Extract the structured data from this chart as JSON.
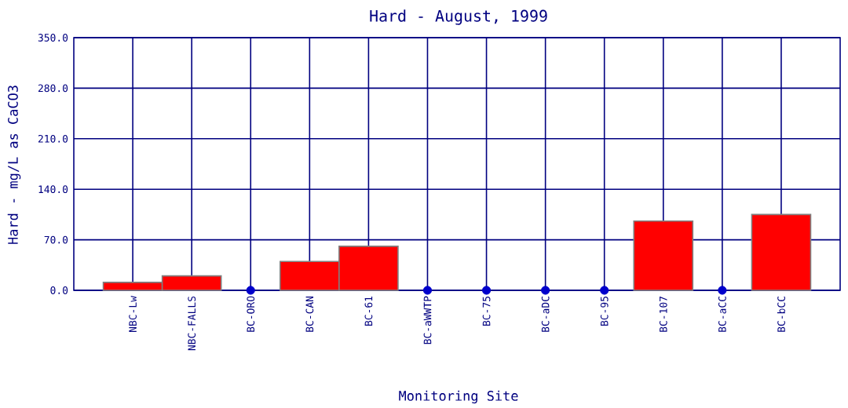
{
  "chart_data": {
    "type": "bar",
    "title": "Hard - August, 1999",
    "xlabel": "Monitoring Site",
    "ylabel": "Hard - mg/L as CaCO3",
    "categories": [
      "NBC-Lw",
      "NBC-FALLS",
      "BC-ORO",
      "BC-CAN",
      "BC-61",
      "BC-aWWTP",
      "BC-75",
      "BC-aDC",
      "BC-95",
      "BC-107",
      "BC-aCC",
      "BC-bCC"
    ],
    "series": [
      {
        "color": "#ff0000",
        "values": [
          11,
          20,
          null,
          40,
          61,
          null,
          null,
          null,
          null,
          96,
          null,
          105
        ]
      },
      {
        "type": "scatter",
        "color": "#0000cc",
        "marker": "circle",
        "values": [
          null,
          null,
          0,
          null,
          null,
          0,
          0,
          0,
          0,
          null,
          0,
          null
        ]
      }
    ],
    "ylim": [
      0,
      350
    ],
    "yticks": [
      {
        "value": 0,
        "label": "0.0"
      },
      {
        "value": 70,
        "label": "70.0"
      },
      {
        "value": 140,
        "label": "140.0"
      },
      {
        "value": 210,
        "label": "210.0"
      },
      {
        "value": 280,
        "label": "280.0"
      },
      {
        "value": 350,
        "label": "350.0"
      }
    ],
    "grid": true
  }
}
